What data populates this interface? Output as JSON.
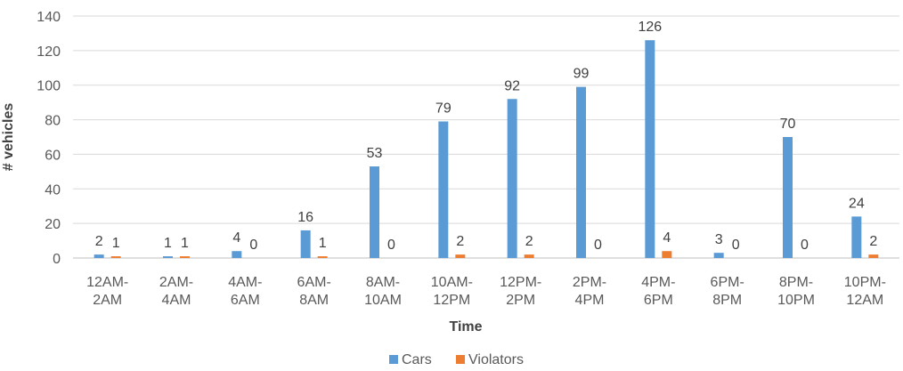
{
  "chart_data": {
    "type": "bar",
    "title": "",
    "xlabel": "Time",
    "ylabel": "# vehicles",
    "ylim": [
      0,
      140
    ],
    "yticks": [
      0,
      20,
      40,
      60,
      80,
      100,
      120,
      140
    ],
    "grid": true,
    "legend_position": "bottom",
    "categories": [
      [
        "12AM-",
        "2AM"
      ],
      [
        "2AM-",
        "4AM"
      ],
      [
        "4AM-",
        "6AM"
      ],
      [
        "6AM-",
        "8AM"
      ],
      [
        "8AM-",
        "10AM"
      ],
      [
        "10AM-",
        "12PM"
      ],
      [
        "12PM-",
        "2PM"
      ],
      [
        "2PM-",
        "4PM"
      ],
      [
        "4PM-",
        "6PM"
      ],
      [
        "6PM-",
        "8PM"
      ],
      [
        "8PM-",
        "10PM"
      ],
      [
        "10PM-",
        "12AM"
      ]
    ],
    "series": [
      {
        "name": "Cars",
        "color": "#5b9bd5",
        "values": [
          2,
          1,
          4,
          16,
          53,
          79,
          92,
          99,
          126,
          3,
          70,
          24
        ]
      },
      {
        "name": "Violators",
        "color": "#ed7d31",
        "values": [
          1,
          1,
          0,
          1,
          0,
          2,
          2,
          0,
          4,
          0,
          0,
          2
        ]
      }
    ]
  }
}
